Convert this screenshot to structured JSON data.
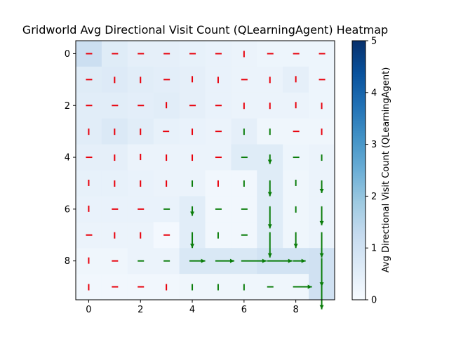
{
  "chart_data": {
    "type": "heatmap",
    "title": "Gridworld Avg Directional Visit Count (QLearningAgent) Heatmap",
    "xlabel": "",
    "ylabel": "",
    "x_ticks": [
      0,
      2,
      4,
      6,
      8
    ],
    "y_ticks": [
      0,
      2,
      4,
      6,
      8
    ],
    "grid_size": [
      10,
      10
    ],
    "colorbar": {
      "label": "Avg Directional Visit Count (QLearningAgent)",
      "ticks": [
        0,
        1,
        2,
        3,
        4,
        5
      ],
      "range": [
        0,
        5
      ],
      "colormap": "Blues"
    },
    "values": [
      [
        1.1,
        0.6,
        0.45,
        0.45,
        0.4,
        0.35,
        0.3,
        0.25,
        0.25,
        0.25
      ],
      [
        0.6,
        0.65,
        0.55,
        0.5,
        0.45,
        0.35,
        0.3,
        0.3,
        0.45,
        0.25
      ],
      [
        0.55,
        0.55,
        0.5,
        0.55,
        0.45,
        0.35,
        0.3,
        0.3,
        0.3,
        0.25
      ],
      [
        0.55,
        0.7,
        0.55,
        0.4,
        0.35,
        0.3,
        0.45,
        0.2,
        0.2,
        0.2
      ],
      [
        0.45,
        0.45,
        0.3,
        0.3,
        0.3,
        0.3,
        0.6,
        0.6,
        0.25,
        0.3
      ],
      [
        0.4,
        0.4,
        0.35,
        0.3,
        0.3,
        0.15,
        0.15,
        0.6,
        0.2,
        0.3
      ],
      [
        0.35,
        0.35,
        0.35,
        0.35,
        0.55,
        0.15,
        0.15,
        0.6,
        0.2,
        0.3
      ],
      [
        0.3,
        0.3,
        0.3,
        0.1,
        0.55,
        0.15,
        0.15,
        0.6,
        0.2,
        0.3
      ],
      [
        0.2,
        0.2,
        0.3,
        0.3,
        0.75,
        0.75,
        0.75,
        0.95,
        0.95,
        1.0
      ],
      [
        0.15,
        0.15,
        0.15,
        0.15,
        0.2,
        0.2,
        0.2,
        0.2,
        0.2,
        1.0
      ]
    ],
    "arrows": [
      [
        "R",
        "R",
        "R",
        "R",
        "R",
        "R",
        "D",
        "R",
        "R",
        "R"
      ],
      [
        "R",
        "D",
        "D",
        "R",
        "U",
        "D",
        "R",
        "D",
        "U",
        "R"
      ],
      [
        "R",
        "R",
        "R",
        "U",
        "R",
        "R",
        "D",
        "D",
        "U",
        "D"
      ],
      [
        "D",
        "D",
        "D",
        "L",
        "D",
        "R",
        "D",
        "D",
        "R",
        "D"
      ],
      [
        "R",
        "D",
        "U",
        "D",
        "D",
        "R",
        "R",
        "D",
        "R",
        "D"
      ],
      [
        "U",
        "D",
        "D",
        "D",
        "D",
        "D",
        "D",
        "D",
        "U",
        "D"
      ],
      [
        "U",
        "R",
        "R",
        "R",
        "D",
        "R",
        "R",
        "D",
        "D",
        "D"
      ],
      [
        "R",
        "D",
        "D",
        "R",
        "D",
        "D",
        "R",
        "D",
        "D",
        "D"
      ],
      [
        "U",
        "R",
        "R",
        "R",
        "R",
        "R",
        "R",
        "R",
        "R",
        "D"
      ],
      [
        "D",
        "R",
        "R",
        "D",
        "D",
        "D",
        "D",
        "R",
        "R",
        "D"
      ]
    ],
    "arrow_lengths": [
      [
        1,
        1,
        1,
        1,
        1,
        1,
        1,
        1,
        1,
        1
      ],
      [
        1,
        1,
        1,
        1,
        1,
        1,
        1,
        1,
        1,
        1
      ],
      [
        1,
        1,
        1,
        1,
        1,
        1,
        1,
        1,
        1,
        1
      ],
      [
        1,
        1,
        1,
        1,
        1,
        1,
        1,
        1,
        1,
        1
      ],
      [
        1,
        1,
        1,
        1,
        1,
        1,
        1,
        1.5,
        1,
        1
      ],
      [
        1,
        1,
        1,
        1,
        1,
        1,
        1,
        2.5,
        1,
        2
      ],
      [
        1,
        1,
        1,
        1,
        1.5,
        1,
        1,
        3.5,
        1,
        3
      ],
      [
        1,
        1,
        1,
        1,
        2.5,
        1,
        1,
        4,
        2.5,
        4
      ],
      [
        1,
        1,
        1,
        1,
        2.5,
        3,
        4,
        4,
        2,
        4.5
      ],
      [
        1,
        1,
        1,
        1,
        1,
        1,
        1,
        1,
        3,
        4
      ]
    ],
    "arrow_colors": [
      [
        "red",
        "red",
        "red",
        "red",
        "red",
        "red",
        "red",
        "red",
        "red",
        "red"
      ],
      [
        "red",
        "red",
        "red",
        "red",
        "red",
        "red",
        "red",
        "red",
        "red",
        "red"
      ],
      [
        "red",
        "red",
        "red",
        "red",
        "red",
        "red",
        "red",
        "red",
        "red",
        "red"
      ],
      [
        "red",
        "red",
        "red",
        "red",
        "red",
        "red",
        "green",
        "green",
        "red",
        "red"
      ],
      [
        "red",
        "red",
        "red",
        "red",
        "red",
        "red",
        "green",
        "green",
        "green",
        "green"
      ],
      [
        "red",
        "red",
        "red",
        "red",
        "green",
        "red",
        "green",
        "green",
        "green",
        "green"
      ],
      [
        "red",
        "red",
        "red",
        "green",
        "green",
        "green",
        "green",
        "green",
        "green",
        "green"
      ],
      [
        "red",
        "red",
        "red",
        "red",
        "green",
        "green",
        "green",
        "green",
        "green",
        "green"
      ],
      [
        "red",
        "red",
        "green",
        "green",
        "green",
        "green",
        "green",
        "green",
        "green",
        "green"
      ],
      [
        "red",
        "red",
        "red",
        "red",
        "green",
        "green",
        "green",
        "green",
        "green",
        "green"
      ]
    ],
    "legend": []
  },
  "colors": {
    "red_arrow": "#e8000b",
    "green_arrow": "#0a7d0a",
    "cmap_low": "#f7fbff",
    "cmap_high": "#08306b"
  }
}
